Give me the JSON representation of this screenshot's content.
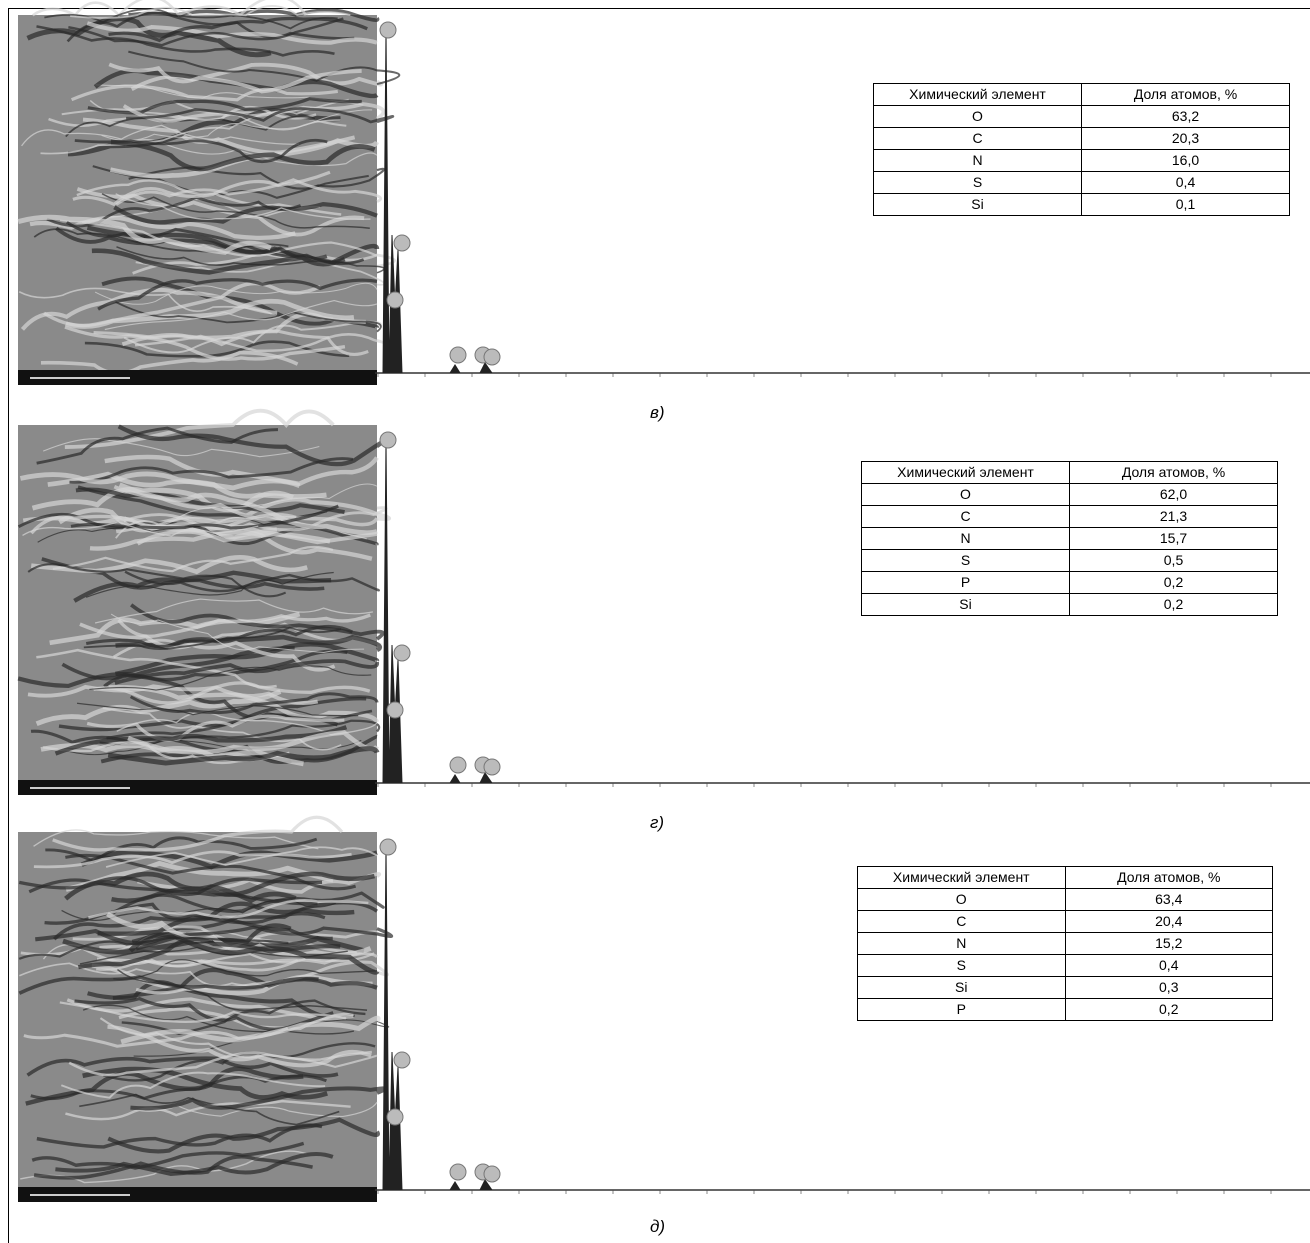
{
  "panels": [
    {
      "label": "в)",
      "table": {
        "header": [
          "Химический элемент",
          "Доля атомов, %"
        ],
        "rows": [
          [
            "O",
            "63,2"
          ],
          [
            "C",
            "20,3"
          ],
          [
            "N",
            "16,0"
          ],
          [
            "S",
            "0,4"
          ],
          [
            "Si",
            "0,1"
          ]
        ]
      }
    },
    {
      "label": "г)",
      "table": {
        "header": [
          "Химический элемент",
          "Доля атомов, %"
        ],
        "rows": [
          [
            "O",
            "62,0"
          ],
          [
            "C",
            "21,3"
          ],
          [
            "N",
            "15,7"
          ],
          [
            "S",
            "0,5"
          ],
          [
            "P",
            "0,2"
          ],
          [
            "Si",
            "0,2"
          ]
        ]
      }
    },
    {
      "label": "д)",
      "table": {
        "header": [
          "Химический элемент",
          "Доля атомов, %"
        ],
        "rows": [
          [
            "O",
            "63,4"
          ],
          [
            "C",
            "20,4"
          ],
          [
            "N",
            "15,2"
          ],
          [
            "S",
            "0,4"
          ],
          [
            "Si",
            "0,3"
          ],
          [
            "P",
            "0,2"
          ]
        ]
      }
    }
  ]
}
